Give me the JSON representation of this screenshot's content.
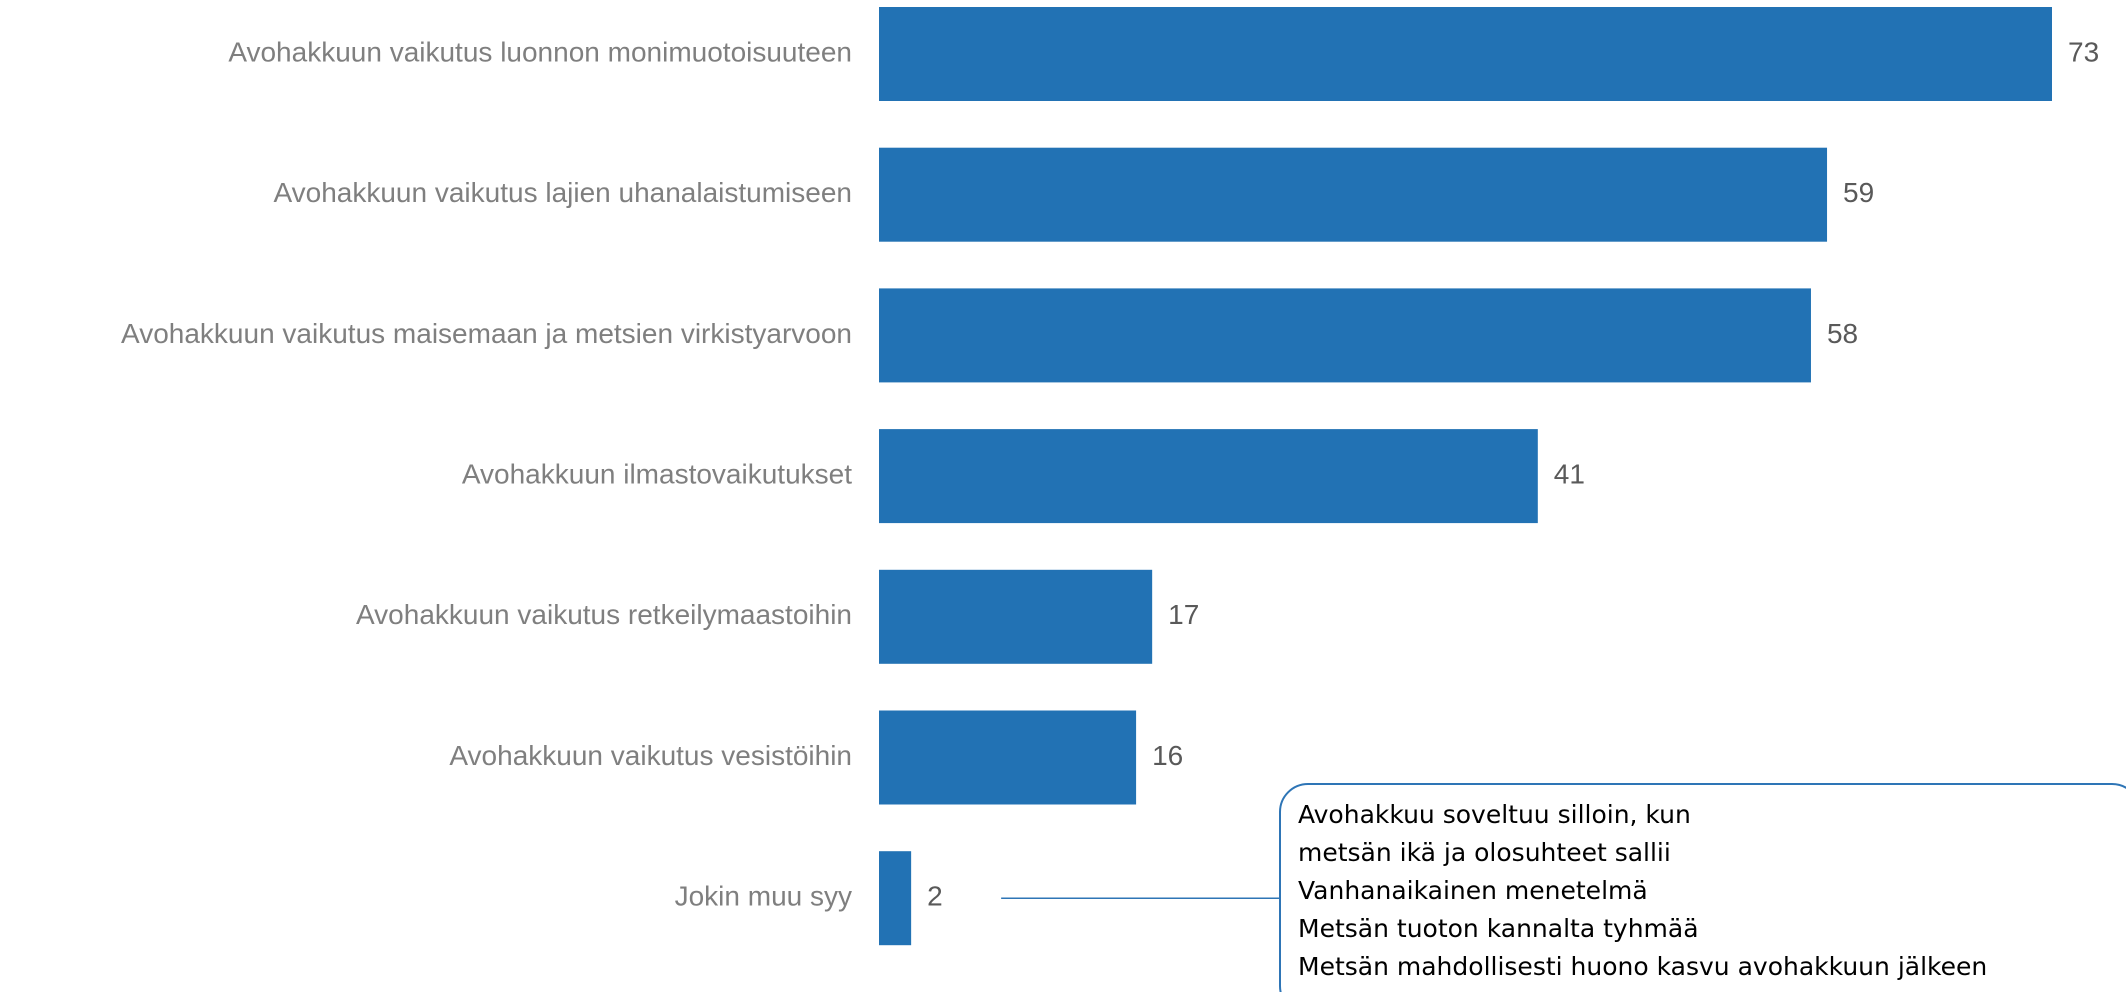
{
  "chart_data": {
    "type": "bar",
    "orientation": "horizontal",
    "categories": [
      "Avohakkuun vaikutus luonnon monimuotoisuuteen",
      "Avohakkuun vaikutus lajien uhanalaistumiseen",
      "Avohakkuun vaikutus maisemaan ja metsien virkistyarvoon",
      "Avohakkuun ilmastovaikutukset",
      "Avohakkuun vaikutus retkeilymaastoihin",
      "Avohakkuun vaikutus vesistöihin",
      "Jokin muu syy"
    ],
    "values": [
      73,
      59,
      58,
      41,
      17,
      16,
      2
    ],
    "color": "#2272b4",
    "annotation": {
      "category_index": 6,
      "lines": [
        "Avohakkuu soveltuu silloin, kun",
        "metsän ikä ja olosuhteet sallii",
        "Vanhanaikainen menetelmä",
        "Metsän tuoton kannalta tyhmää",
        "Metsän mahdollisesti huono kasvu avohakkuun jälkeen"
      ]
    }
  }
}
